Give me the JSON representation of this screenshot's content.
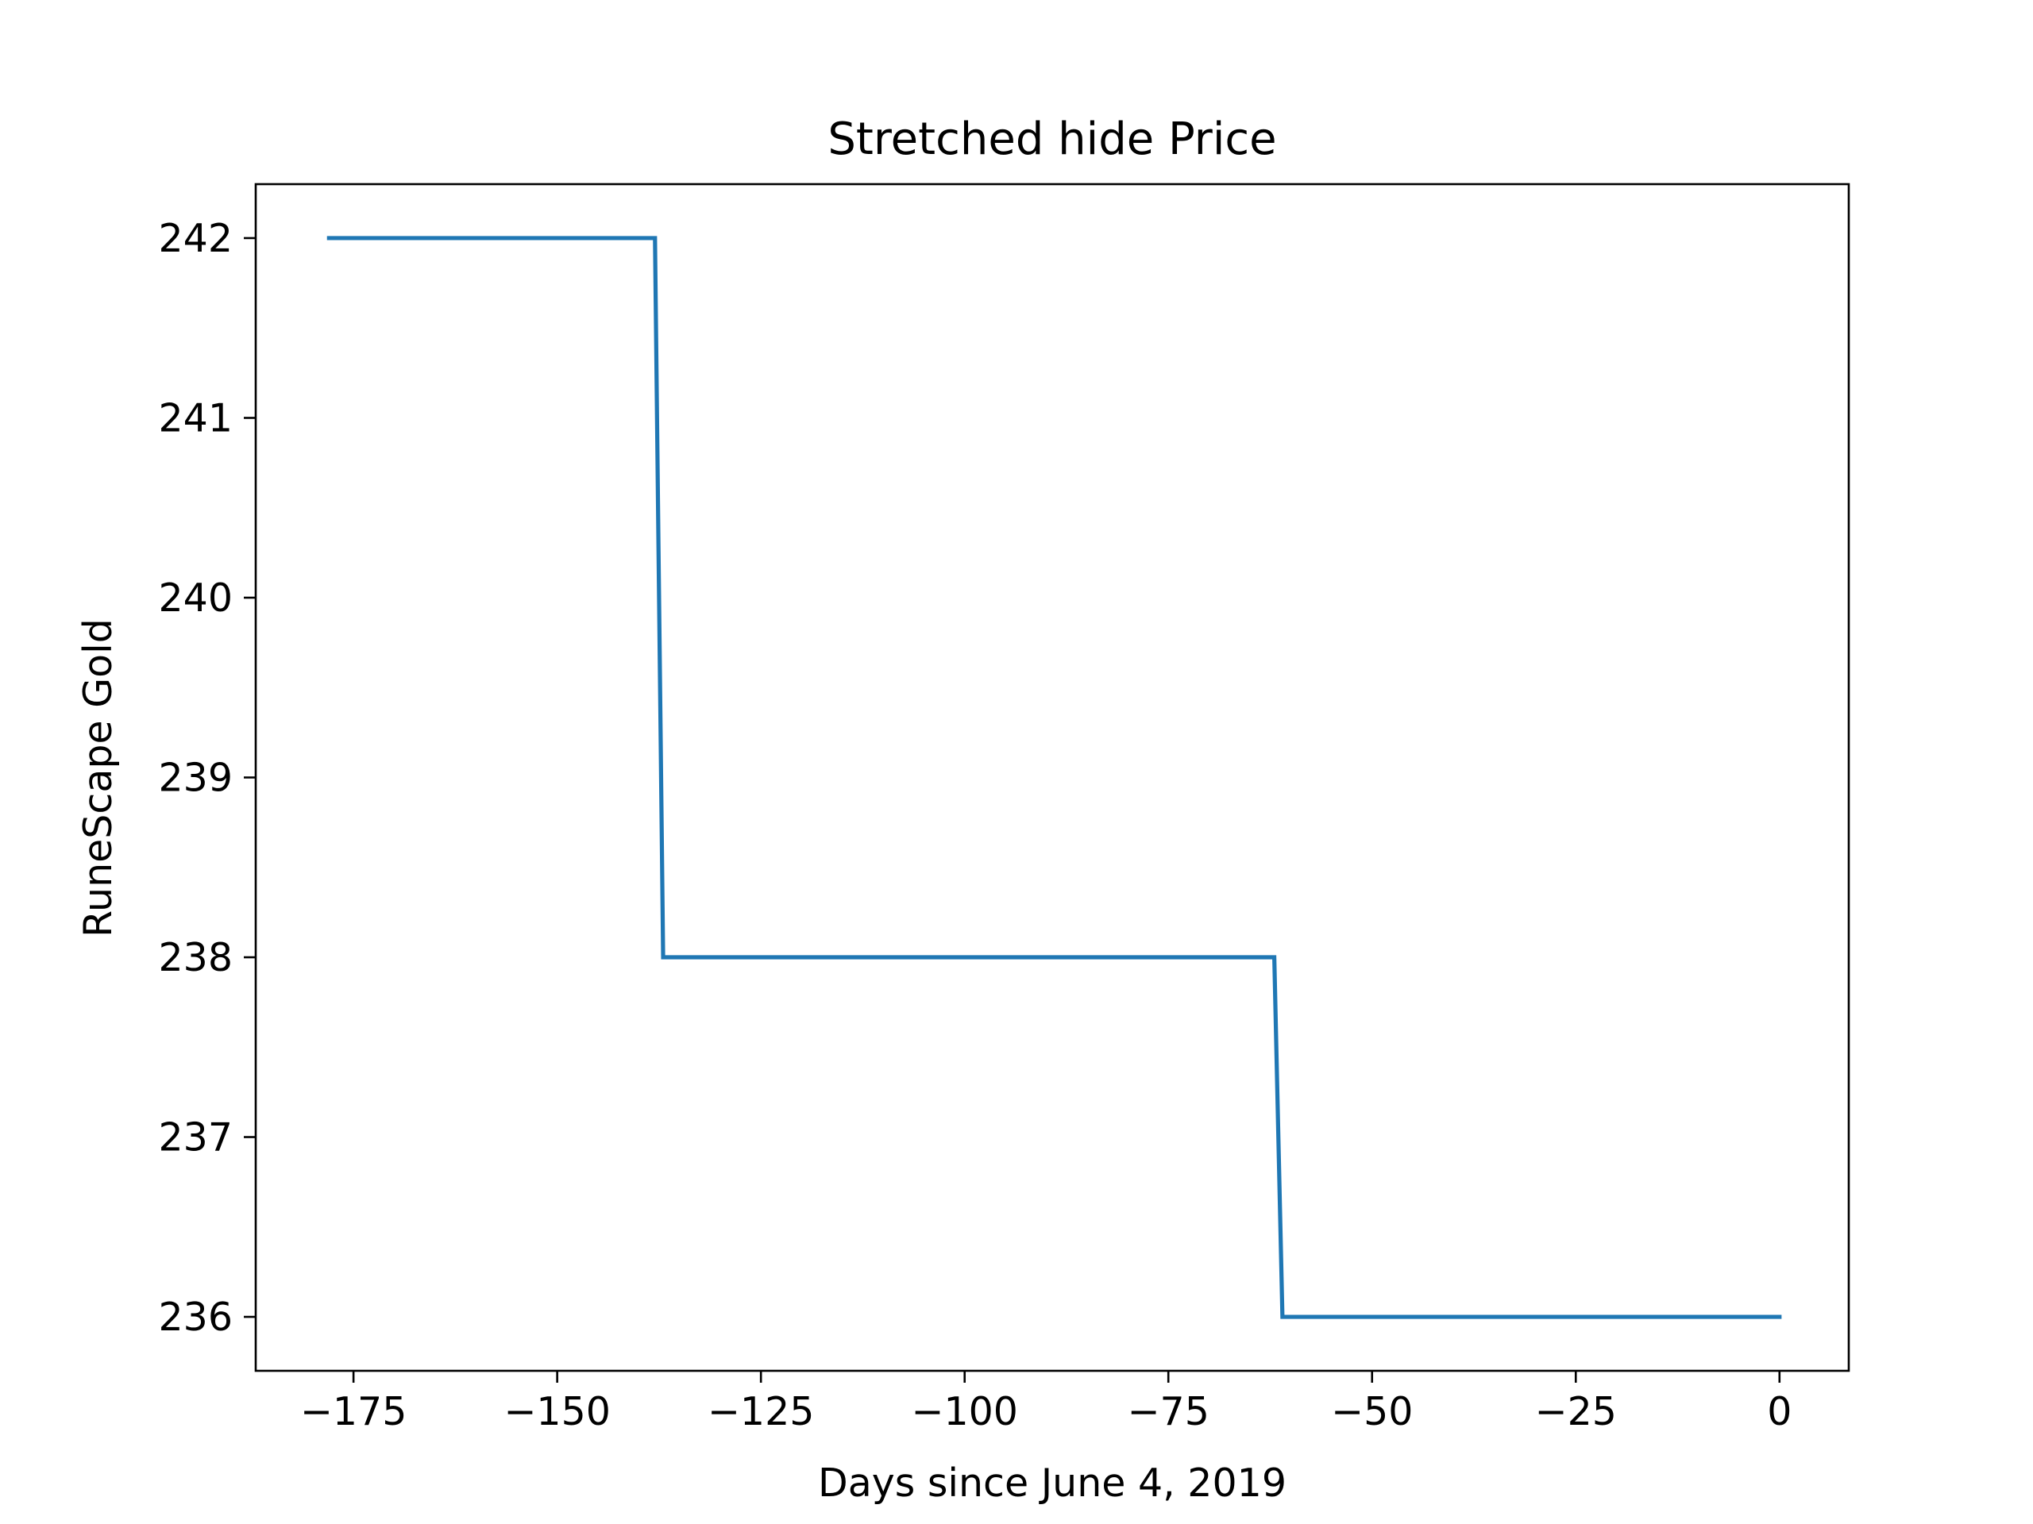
{
  "chart_data": {
    "type": "line",
    "title": "Stretched hide Price",
    "xlabel": "Days since June 4, 2019",
    "ylabel": "RuneScape Gold",
    "xlim": [
      -187,
      8.5
    ],
    "ylim": [
      235.7,
      242.3
    ],
    "x_ticks": [
      -175,
      -150,
      -125,
      -100,
      -75,
      -50,
      -25,
      0
    ],
    "x_tick_labels": [
      "−175",
      "−150",
      "−125",
      "−100",
      "−75",
      "−50",
      "−25",
      "0"
    ],
    "y_ticks": [
      236,
      237,
      238,
      239,
      240,
      241,
      242
    ],
    "y_tick_labels": [
      "236",
      "237",
      "238",
      "239",
      "240",
      "241",
      "242"
    ],
    "grid": false,
    "line_color": "#1f77b4",
    "series": [
      {
        "x": [
          -178,
          -138,
          -137,
          -62,
          -61,
          0
        ],
        "y": [
          242,
          242,
          238,
          238,
          236,
          236
        ]
      }
    ]
  }
}
